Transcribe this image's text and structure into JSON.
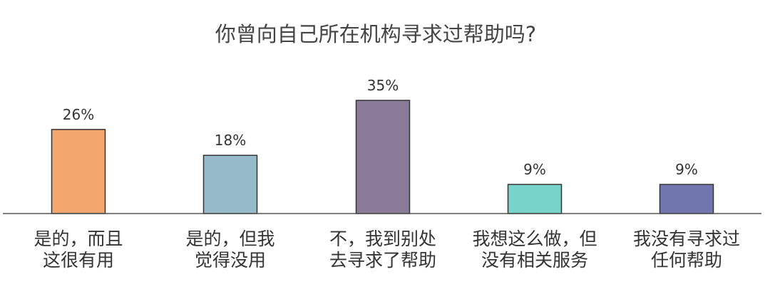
{
  "chart_data": {
    "type": "bar",
    "title": "你曾向自己所在机构寻求过帮助吗?",
    "categories": [
      [
        "是的，而且",
        "这很有用"
      ],
      [
        "是的，但我",
        "觉得没用"
      ],
      [
        "不，我到别处",
        "去寻求了帮助"
      ],
      [
        "我想这么做，但",
        "没有相关服务"
      ],
      [
        "我没有寻求过",
        "任何帮助"
      ]
    ],
    "values": [
      26,
      18,
      35,
      9,
      9
    ],
    "value_labels": [
      "26%",
      "18%",
      "35%",
      "9%",
      "9%"
    ],
    "colors": [
      "#F2A76F",
      "#97BACB",
      "#8A7B98",
      "#78D4CA",
      "#7276AF"
    ],
    "ylim": [
      0,
      35
    ],
    "grid": false,
    "xlabel": "",
    "ylabel": ""
  }
}
